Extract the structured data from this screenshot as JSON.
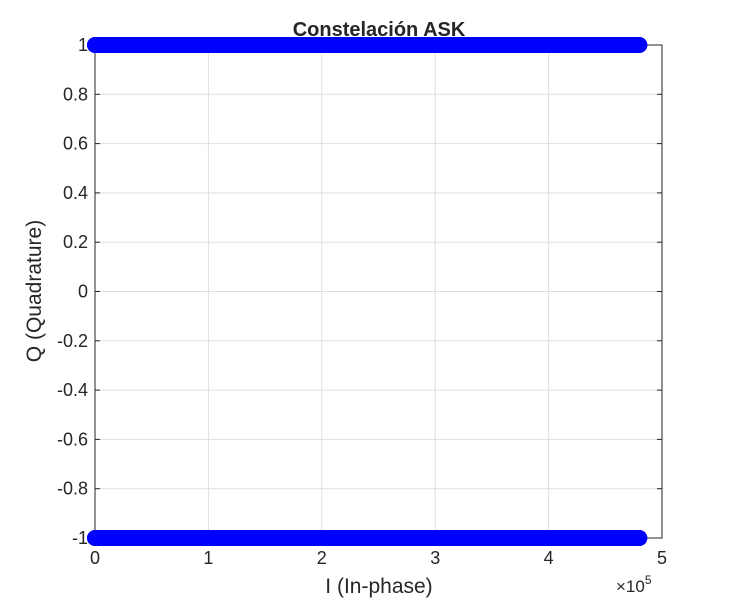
{
  "chart_data": {
    "type": "scatter",
    "title": "Constelación ASK",
    "xlabel": "I (In-phase)",
    "ylabel": "Q (Quadrature)",
    "xlim": [
      0,
      500000
    ],
    "ylim": [
      -1,
      1
    ],
    "x_multiplier": {
      "base": "×10",
      "exponent": "5"
    },
    "x_ticks": [
      0,
      100000,
      200000,
      300000,
      400000,
      500000
    ],
    "x_tick_labels": [
      "0",
      "1",
      "2",
      "3",
      "4",
      "5"
    ],
    "y_ticks": [
      1,
      0.8,
      0.6,
      0.4,
      0.2,
      0,
      -0.2,
      -0.4,
      -0.6,
      -0.8,
      -1
    ],
    "y_tick_labels": [
      "1",
      "0.8",
      "0.6",
      "0.4",
      "0.2",
      "0",
      "-0.2",
      "-0.4",
      "-0.6",
      "-0.8",
      "-1"
    ],
    "grid": true,
    "marker_color": "#0000FF",
    "series": [
      {
        "values_description_free": true,
        "points": [
          {
            "x_start": 0,
            "x_end": 480000,
            "y": 1
          },
          {
            "x_start": 0,
            "x_end": 480000,
            "y": -1
          }
        ]
      }
    ]
  }
}
